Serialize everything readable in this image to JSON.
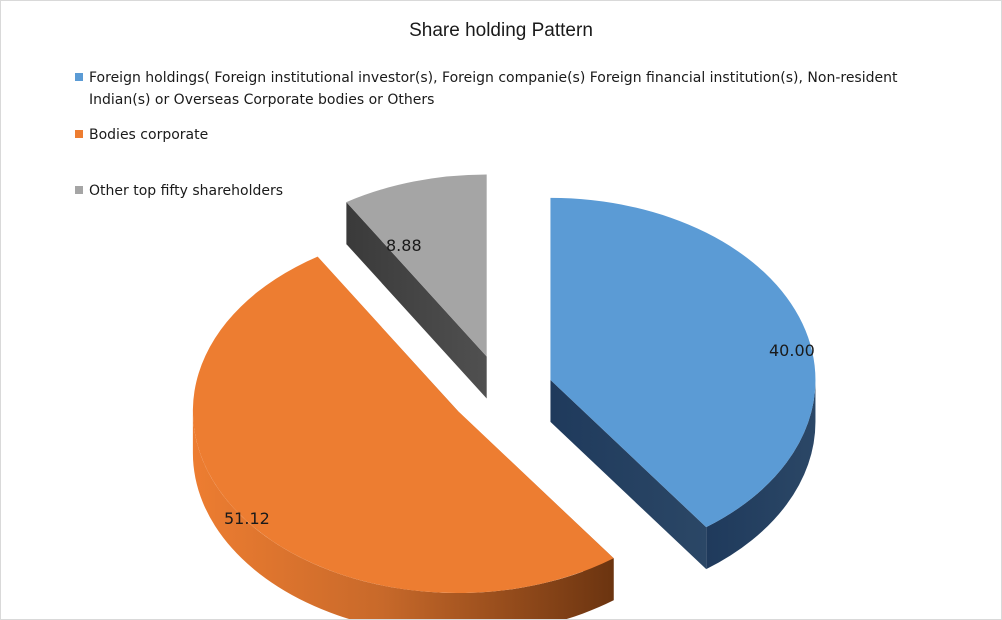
{
  "chart_data": {
    "type": "pie",
    "title": "Share holding Pattern",
    "exploded": true,
    "three_d": true,
    "legend_position": "top",
    "series": [
      {
        "name": "Foreign holdings( Foreign institutional investor(s), Foreign companie(s) Foreign financial institution(s),  Non-resident Indian(s) or Overseas Corporate bodies or Others",
        "value": 40.0,
        "label": "40.00",
        "color": "#5b9bd5"
      },
      {
        "name": "Bodies corporate",
        "value": 51.12,
        "label": "51.12",
        "color": "#ed7d31"
      },
      {
        "name": "Other top fifty shareholders",
        "value": 8.88,
        "label": "8.88",
        "color": "#a5a5a5"
      }
    ]
  }
}
